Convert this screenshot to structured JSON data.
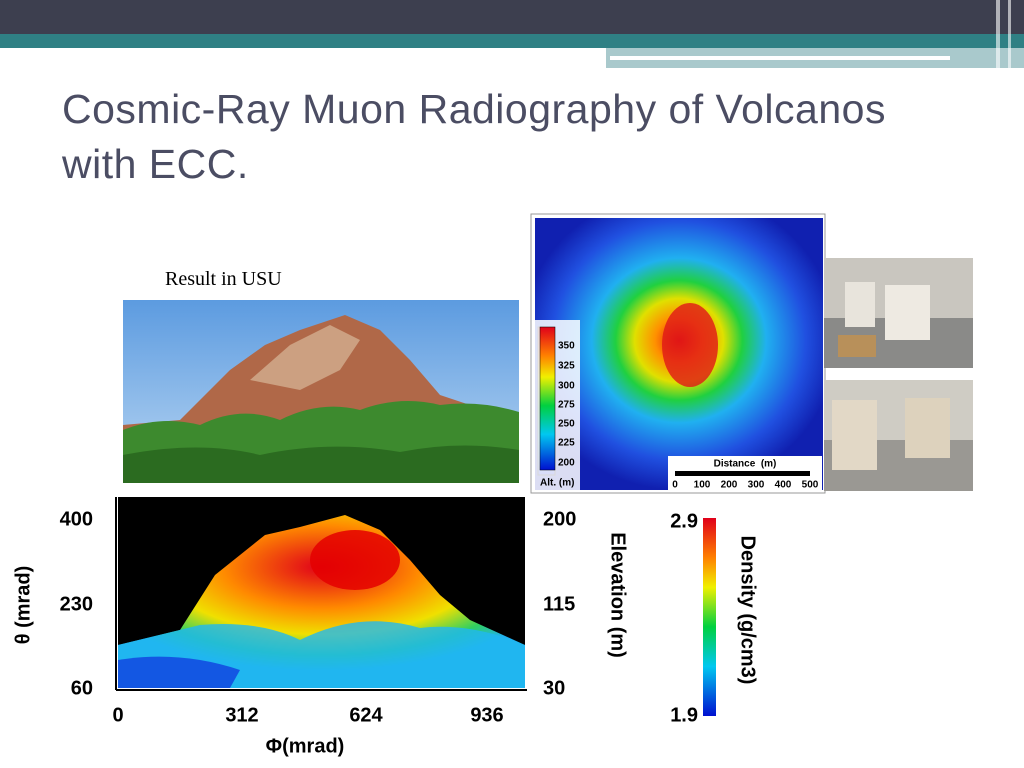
{
  "title": "Cosmic-Ray Muon Radiography of Volcanos with ECC.",
  "caption": "Result in USU",
  "altitude_map": {
    "colorbar_label": "Alt. (m)",
    "colorbar_ticks": [
      "350",
      "325",
      "300",
      "275",
      "250",
      "225",
      "200"
    ],
    "scale_label": "Distance  (m)",
    "scale_ticks": [
      "0",
      "100",
      "200",
      "300",
      "400",
      "500"
    ]
  },
  "density_plot": {
    "y_label": "θ (mrad)",
    "y_ticks": [
      "400",
      "230",
      "60"
    ],
    "x_label": "Φ(mrad)",
    "x_ticks": [
      "0",
      "312",
      "624",
      "936"
    ],
    "y2_label": "Elevation (m)",
    "y2_ticks": [
      "200",
      "115",
      "30"
    ],
    "colorbar_label": "Density (g/cm3)",
    "colorbar_ticks": [
      "2.9",
      "1.9"
    ]
  }
}
